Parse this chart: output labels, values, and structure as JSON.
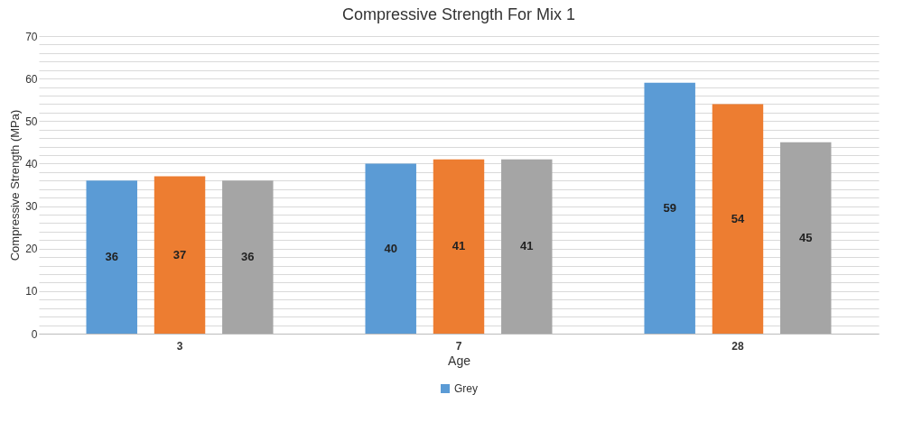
{
  "chart_data": {
    "type": "bar",
    "title": "Compressive Strength For Mix 1",
    "xlabel": "Age",
    "ylabel": "Compressive Strength (MPa)",
    "categories": [
      "3",
      "7",
      "28"
    ],
    "series": [
      {
        "name": "Grey",
        "color": "#5b9bd5",
        "values": [
          36,
          40,
          59
        ]
      },
      {
        "color": "#ed7d31",
        "values": [
          37,
          41,
          54
        ]
      },
      {
        "color": "#a5a5a5",
        "values": [
          36,
          41,
          45
        ]
      }
    ],
    "ylim": [
      0,
      70
    ],
    "yticks": [
      0,
      {
        "value": 2,
        "label": null
      },
      {
        "value": 4,
        "label": null
      },
      {
        "value": 6,
        "label": null
      },
      {
        "value": 8,
        "label": null
      },
      10,
      {
        "value": 12,
        "label": null
      },
      {
        "value": 14,
        "label": null
      },
      {
        "value": 16,
        "label": null
      },
      {
        "value": 18,
        "label": null
      },
      20,
      {
        "value": 22,
        "label": null
      },
      {
        "value": 24,
        "label": null
      },
      {
        "value": 26,
        "label": null
      },
      {
        "value": 28,
        "label": null
      },
      30,
      {
        "value": 32,
        "label": null
      },
      {
        "value": 34,
        "label": null
      },
      {
        "value": 36,
        "label": null
      },
      {
        "value": 38,
        "label": null
      },
      40,
      {
        "value": 42,
        "label": null
      },
      {
        "value": 44,
        "label": null
      },
      {
        "value": 46,
        "label": null
      },
      {
        "value": 48,
        "label": null
      },
      50,
      {
        "value": 52,
        "label": null
      },
      {
        "value": 54,
        "label": null
      },
      {
        "value": 56,
        "label": null
      },
      {
        "value": 58,
        "label": null
      },
      60,
      {
        "value": 62,
        "label": null
      },
      {
        "value": 64,
        "label": null
      },
      {
        "value": 66,
        "label": null
      },
      {
        "value": 68,
        "label": null
      },
      70
    ],
    "grid": true,
    "legend": "bottom",
    "data_labels": true
  }
}
